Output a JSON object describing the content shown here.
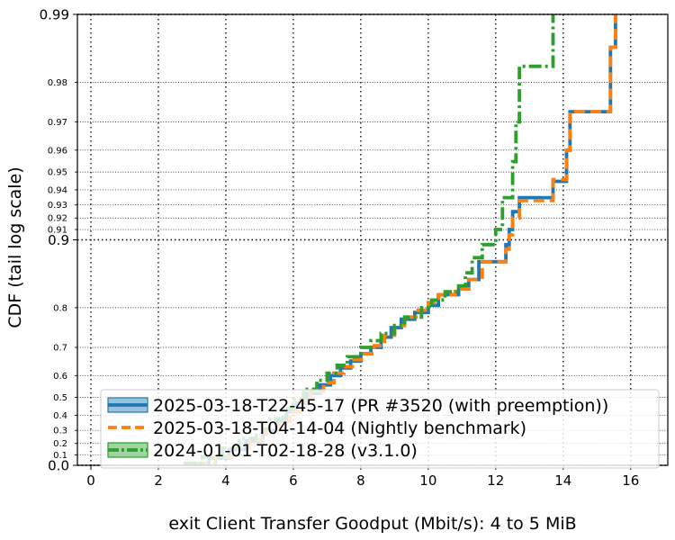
{
  "chart_data": {
    "type": "line",
    "xlabel": "exit Client Transfer Goodput (Mbit/s): 4 to 5 MiB",
    "ylabel": "CDF (tail log scale)",
    "xlim": [
      -0.4,
      17.1
    ],
    "x_ticks": [
      0,
      2,
      4,
      6,
      8,
      10,
      12,
      14,
      16
    ],
    "y_major_ticks": [
      {
        "v": 0.0,
        "label": "0.0"
      },
      {
        "v": 0.9,
        "label": "0.9"
      },
      {
        "v": 0.99,
        "label": "0.99"
      }
    ],
    "y_minor_ticks": [
      {
        "v": 0.1,
        "label": "0.1"
      },
      {
        "v": 0.2,
        "label": "0.2"
      },
      {
        "v": 0.3,
        "label": "0.3"
      },
      {
        "v": 0.4,
        "label": "0.4"
      },
      {
        "v": 0.5,
        "label": "0.5"
      },
      {
        "v": 0.6,
        "label": "0.6"
      },
      {
        "v": 0.7,
        "label": "0.7"
      },
      {
        "v": 0.8,
        "label": "0.8"
      },
      {
        "v": 0.91,
        "label": "0.91"
      },
      {
        "v": 0.92,
        "label": "0.92"
      },
      {
        "v": 0.93,
        "label": "0.93"
      },
      {
        "v": 0.94,
        "label": "0.94"
      },
      {
        "v": 0.95,
        "label": "0.95"
      },
      {
        "v": 0.96,
        "label": "0.96"
      },
      {
        "v": 0.97,
        "label": "0.97"
      },
      {
        "v": 0.98,
        "label": "0.98"
      }
    ],
    "grid": true,
    "legend_position": "lower-right",
    "series": [
      {
        "name": "2025-03-18-T22-45-17 (PR #3520 (with preemption))",
        "color": "#1f77b4",
        "style": "solid",
        "points": [
          [
            3.0,
            0.02
          ],
          [
            3.5,
            0.07
          ],
          [
            4.1,
            0.15
          ],
          [
            4.6,
            0.22
          ],
          [
            5.1,
            0.3
          ],
          [
            5.5,
            0.36
          ],
          [
            5.8,
            0.42
          ],
          [
            6.1,
            0.47
          ],
          [
            6.4,
            0.52
          ],
          [
            6.8,
            0.56
          ],
          [
            7.1,
            0.6
          ],
          [
            7.4,
            0.63
          ],
          [
            7.7,
            0.655
          ],
          [
            8.0,
            0.68
          ],
          [
            8.3,
            0.7
          ],
          [
            8.6,
            0.73
          ],
          [
            8.9,
            0.755
          ],
          [
            9.2,
            0.775
          ],
          [
            9.6,
            0.79
          ],
          [
            10.0,
            0.805
          ],
          [
            10.3,
            0.825
          ],
          [
            10.9,
            0.835
          ],
          [
            11.2,
            0.85
          ],
          [
            11.5,
            0.875
          ],
          [
            12.3,
            0.895
          ],
          [
            12.4,
            0.91
          ],
          [
            12.5,
            0.925
          ],
          [
            12.7,
            0.935
          ],
          [
            13.7,
            0.945
          ],
          [
            14.1,
            0.96
          ],
          [
            14.2,
            0.973
          ],
          [
            15.4,
            0.986
          ],
          [
            15.55,
            0.99
          ]
        ]
      },
      {
        "name": "2025-03-18-T04-14-04 (Nightly benchmark)",
        "color": "#ff7f0e",
        "style": "dashed",
        "points": [
          [
            3.2,
            0.02
          ],
          [
            3.7,
            0.08
          ],
          [
            4.2,
            0.16
          ],
          [
            4.7,
            0.23
          ],
          [
            5.2,
            0.3
          ],
          [
            5.6,
            0.36
          ],
          [
            5.9,
            0.42
          ],
          [
            6.2,
            0.48
          ],
          [
            6.5,
            0.53
          ],
          [
            6.9,
            0.57
          ],
          [
            7.2,
            0.61
          ],
          [
            7.5,
            0.635
          ],
          [
            7.8,
            0.66
          ],
          [
            8.1,
            0.68
          ],
          [
            8.4,
            0.705
          ],
          [
            8.7,
            0.735
          ],
          [
            9.0,
            0.76
          ],
          [
            9.3,
            0.78
          ],
          [
            9.7,
            0.795
          ],
          [
            10.0,
            0.81
          ],
          [
            10.3,
            0.825
          ],
          [
            10.8,
            0.835
          ],
          [
            11.2,
            0.85
          ],
          [
            11.6,
            0.875
          ],
          [
            12.3,
            0.89
          ],
          [
            12.4,
            0.905
          ],
          [
            12.5,
            0.92
          ],
          [
            12.7,
            0.933
          ],
          [
            13.7,
            0.946
          ],
          [
            14.1,
            0.96
          ],
          [
            14.2,
            0.973
          ],
          [
            15.4,
            0.986
          ],
          [
            15.55,
            0.99
          ]
        ]
      },
      {
        "name": "2024-01-01-T02-18-28 (v3.1.0)",
        "color": "#2ca02c",
        "style": "dashdot",
        "points": [
          [
            2.8,
            0.02
          ],
          [
            3.3,
            0.08
          ],
          [
            3.9,
            0.16
          ],
          [
            4.4,
            0.24
          ],
          [
            4.9,
            0.31
          ],
          [
            5.3,
            0.38
          ],
          [
            5.7,
            0.44
          ],
          [
            6.0,
            0.49
          ],
          [
            6.3,
            0.54
          ],
          [
            6.7,
            0.58
          ],
          [
            7.0,
            0.61
          ],
          [
            7.3,
            0.64
          ],
          [
            7.6,
            0.67
          ],
          [
            8.0,
            0.7
          ],
          [
            8.3,
            0.72
          ],
          [
            8.6,
            0.74
          ],
          [
            9.0,
            0.76
          ],
          [
            9.3,
            0.78
          ],
          [
            9.8,
            0.8
          ],
          [
            10.1,
            0.815
          ],
          [
            10.5,
            0.83
          ],
          [
            10.9,
            0.84
          ],
          [
            11.1,
            0.86
          ],
          [
            11.3,
            0.88
          ],
          [
            11.6,
            0.895
          ],
          [
            12.0,
            0.91
          ],
          [
            12.2,
            0.935
          ],
          [
            12.5,
            0.955
          ],
          [
            12.6,
            0.97
          ],
          [
            12.7,
            0.983
          ],
          [
            13.7,
            0.99
          ]
        ]
      }
    ]
  }
}
